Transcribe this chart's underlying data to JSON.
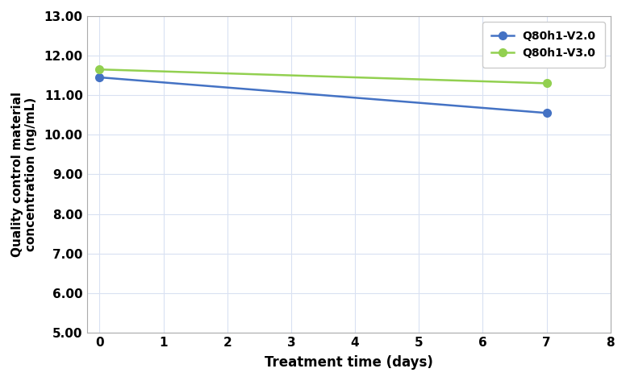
{
  "title": "",
  "xlabel": "Treatment time (days)",
  "ylabel": "Quality control material\nconcentration (ng/mL)",
  "xlim": [
    -0.2,
    8
  ],
  "ylim": [
    5.0,
    13.0
  ],
  "xticks": [
    0,
    1,
    2,
    3,
    4,
    5,
    6,
    7,
    8
  ],
  "yticks": [
    5.0,
    6.0,
    7.0,
    8.0,
    9.0,
    10.0,
    11.0,
    12.0,
    13.0
  ],
  "series": [
    {
      "label": "Q80h1-V2.0",
      "x": [
        0,
        7
      ],
      "y": [
        11.45,
        10.55
      ],
      "color": "#4472C4",
      "marker": "o",
      "linewidth": 1.8,
      "markersize": 7
    },
    {
      "label": "Q80h1-V3.0",
      "x": [
        0,
        7
      ],
      "y": [
        11.65,
        11.3
      ],
      "color": "#92D050",
      "marker": "o",
      "linewidth": 1.8,
      "markersize": 7
    }
  ],
  "grid_color": "#D9E1F2",
  "plot_bg_color": "#FFFFFF",
  "fig_bg_color": "#FFFFFF",
  "legend_loc": "upper right",
  "xlabel_fontsize": 12,
  "ylabel_fontsize": 11,
  "tick_fontsize": 11,
  "legend_fontsize": 10,
  "spine_color": "#AAAAAA"
}
